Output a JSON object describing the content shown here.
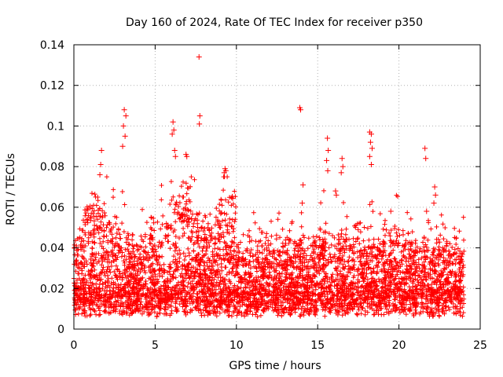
{
  "chart_data": {
    "type": "scatter",
    "title": "Day 160 of 2024, Rate Of TEC Index for receiver p350",
    "xlabel": "GPS time / hours",
    "ylabel": "ROTI / TECUs",
    "xlim": [
      0,
      25
    ],
    "ylim": [
      0,
      0.14
    ],
    "x_ticks": [
      0,
      5,
      10,
      15,
      20,
      25
    ],
    "x_tick_labels": [
      "0",
      "5",
      "10",
      "15",
      "20",
      "25"
    ],
    "y_ticks": [
      0,
      0.02,
      0.04,
      0.06,
      0.08,
      0.1,
      0.12,
      0.14
    ],
    "y_tick_labels": [
      "0",
      "0.02",
      "0.04",
      "0.06",
      "0.08",
      "0.1",
      "0.12",
      "0.14"
    ],
    "grid": true,
    "marker": "+",
    "color": "#ff0000",
    "series": [
      {
        "name": "ROTI",
        "points": [
          [
            3.1,
            0.108
          ],
          [
            3.2,
            0.105
          ],
          [
            3.05,
            0.1
          ],
          [
            3.15,
            0.095
          ],
          [
            3.0,
            0.09
          ],
          [
            7.7,
            0.134
          ],
          [
            7.75,
            0.105
          ],
          [
            7.72,
            0.101
          ],
          [
            6.1,
            0.102
          ],
          [
            6.15,
            0.098
          ],
          [
            6.05,
            0.096
          ],
          [
            6.2,
            0.088
          ],
          [
            6.25,
            0.085
          ],
          [
            13.9,
            0.109
          ],
          [
            13.95,
            0.108
          ],
          [
            15.6,
            0.094
          ],
          [
            15.65,
            0.088
          ],
          [
            15.55,
            0.083
          ],
          [
            15.62,
            0.078
          ],
          [
            16.5,
            0.084
          ],
          [
            16.55,
            0.08
          ],
          [
            16.45,
            0.077
          ],
          [
            18.2,
            0.097
          ],
          [
            18.3,
            0.096
          ],
          [
            18.25,
            0.092
          ],
          [
            18.35,
            0.089
          ],
          [
            18.2,
            0.085
          ],
          [
            18.3,
            0.081
          ],
          [
            21.6,
            0.089
          ],
          [
            21.65,
            0.084
          ],
          [
            1.7,
            0.088
          ],
          [
            1.65,
            0.081
          ],
          [
            1.6,
            0.076
          ],
          [
            9.3,
            0.079
          ],
          [
            9.35,
            0.078
          ],
          [
            9.25,
            0.077
          ],
          [
            6.9,
            0.086
          ],
          [
            6.95,
            0.085
          ],
          [
            22.2,
            0.07
          ],
          [
            22.25,
            0.066
          ],
          [
            22.15,
            0.062
          ],
          [
            14.1,
            0.071
          ],
          [
            14.05,
            0.062
          ],
          [
            16.1,
            0.068
          ],
          [
            16.15,
            0.066
          ],
          [
            19.5,
            0.058
          ],
          [
            21.7,
            0.058
          ]
        ]
      }
    ]
  }
}
